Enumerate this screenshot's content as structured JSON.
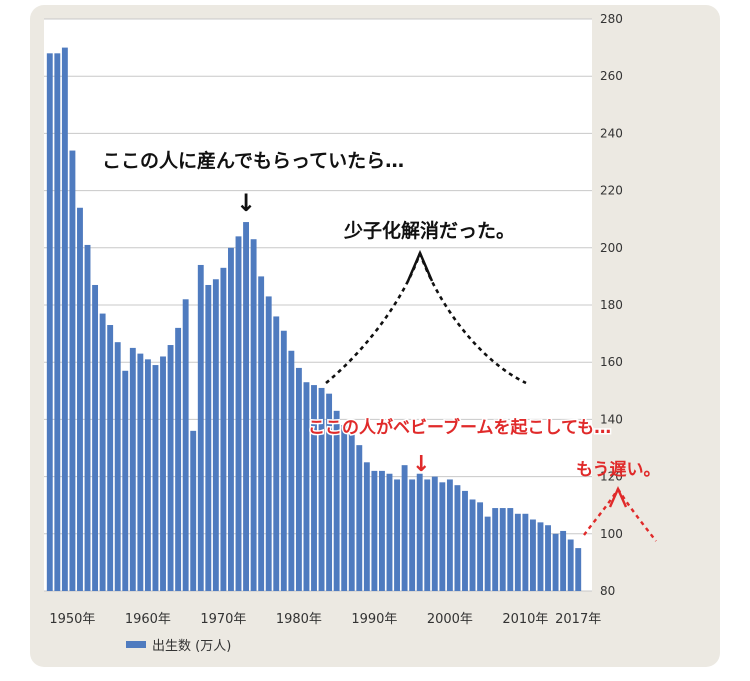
{
  "chart_data": {
    "type": "bar",
    "x": [
      1947,
      1948,
      1949,
      1950,
      1951,
      1952,
      1953,
      1954,
      1955,
      1956,
      1957,
      1958,
      1959,
      1960,
      1961,
      1962,
      1963,
      1964,
      1965,
      1966,
      1967,
      1968,
      1969,
      1970,
      1971,
      1972,
      1973,
      1974,
      1975,
      1976,
      1977,
      1978,
      1979,
      1980,
      1981,
      1982,
      1983,
      1984,
      1985,
      1986,
      1987,
      1988,
      1989,
      1990,
      1991,
      1992,
      1993,
      1994,
      1995,
      1996,
      1997,
      1998,
      1999,
      2000,
      2001,
      2002,
      2003,
      2004,
      2005,
      2006,
      2007,
      2008,
      2009,
      2010,
      2011,
      2012,
      2013,
      2014,
      2015,
      2016,
      2017
    ],
    "series": [
      {
        "name": "出生数 (万人)",
        "values": [
          268,
          268,
          270,
          234,
          214,
          201,
          187,
          177,
          173,
          167,
          157,
          165,
          163,
          161,
          159,
          162,
          166,
          172,
          182,
          136,
          194,
          187,
          189,
          193,
          200,
          204,
          209,
          203,
          190,
          183,
          176,
          171,
          164,
          158,
          153,
          152,
          151,
          149,
          143,
          138,
          135,
          131,
          125,
          122,
          122,
          121,
          119,
          124,
          119,
          121,
          119,
          120,
          118,
          119,
          117,
          115,
          112,
          111,
          106,
          109,
          109,
          109,
          107,
          107,
          105,
          104,
          103,
          100,
          101,
          98,
          95
        ]
      }
    ],
    "ylim": [
      80,
      280
    ],
    "y_ticks": [
      "80",
      "100",
      "120",
      "140",
      "160",
      "180",
      "200",
      "220",
      "240",
      "260",
      "280"
    ],
    "x_tick_labels": [
      "1950年",
      "1960年",
      "1970年",
      "1980年",
      "1990年",
      "2000年",
      "2010年",
      "2017年"
    ],
    "x_tick_years": [
      1950,
      1960,
      1970,
      1980,
      1990,
      2000,
      2010,
      2017
    ],
    "y_axis_side": "right",
    "grid": true,
    "legend": {
      "entry": "出生数 (万人)",
      "position": "bottom-left"
    },
    "bar_color": "#4f7bbf",
    "annotations": {
      "peak_note": "ここの人に産んでもらっていたら…",
      "peak_arrow": "↓",
      "resolve_note": "少子化解消だった。",
      "boom_note": "ここの人がベビーブームを起こしても…",
      "boom_arrow": "↓",
      "late_note": "もう遅い。",
      "black_color": "#111111",
      "red_color": "#e02a2a"
    }
  }
}
